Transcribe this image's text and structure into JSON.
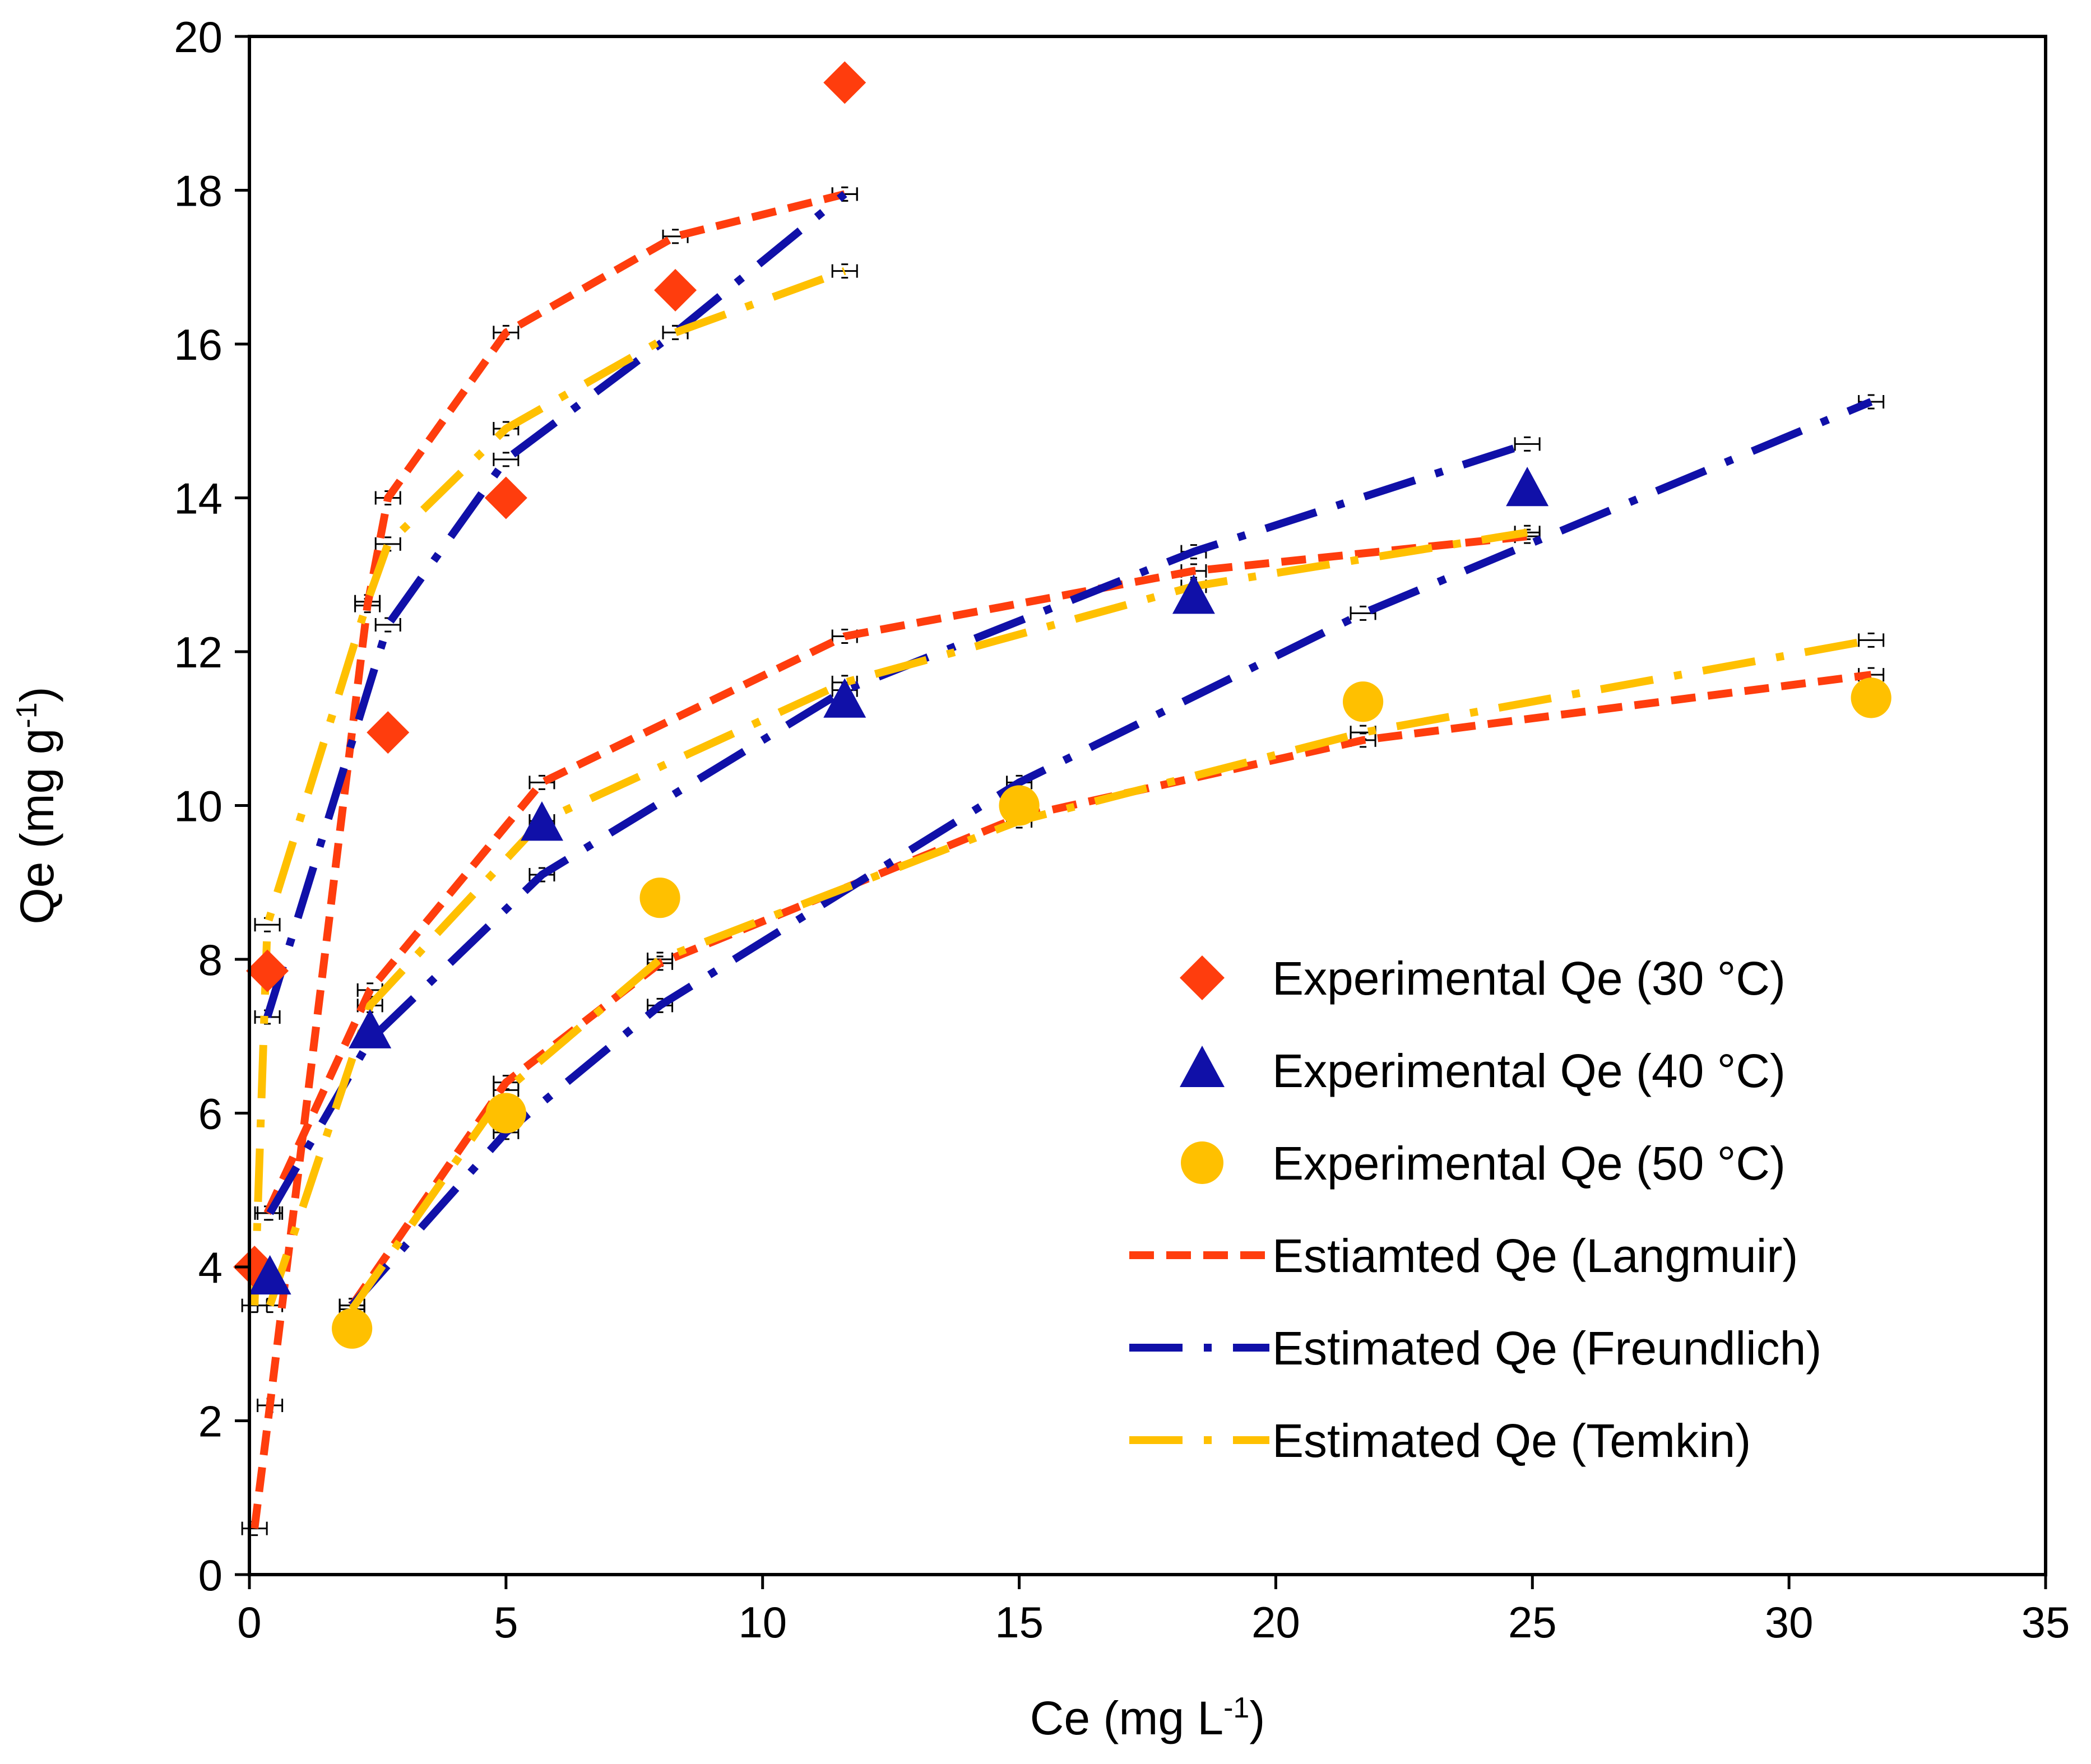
{
  "chart_data": {
    "type": "scatter",
    "xlabel": "Ce (mg L",
    "xlabel_sup": "-1",
    "xlabel_end": ")",
    "ylabel": "Qe (mg g",
    "ylabel_sup": "-1",
    "ylabel_end": ")",
    "xlim": [
      0,
      35
    ],
    "ylim": [
      0,
      20
    ],
    "xticks": [
      0,
      5,
      10,
      15,
      20,
      25,
      30,
      35
    ],
    "yticks": [
      0,
      2,
      4,
      6,
      8,
      10,
      12,
      14,
      16,
      18,
      20
    ],
    "grid": false,
    "legend_position": "bottom-right",
    "series": [
      {
        "name": "Experimental Qe (30 °C)",
        "marker": "diamond",
        "color": "#FF3D0D",
        "x": [
          0.1,
          0.35,
          2.7,
          5.0,
          8.3,
          11.6
        ],
        "y": [
          4.0,
          7.85,
          10.95,
          14.0,
          16.7,
          19.4
        ]
      },
      {
        "name": "Experimental Qe (40 °C)",
        "marker": "triangle",
        "color": "#1010A8",
        "x": [
          0.4,
          2.35,
          5.7,
          11.6,
          18.4,
          24.9
        ],
        "y": [
          3.85,
          7.05,
          9.75,
          11.35,
          12.7,
          14.1
        ]
      },
      {
        "name": "Experimental Qe (50 °C)",
        "marker": "circle",
        "color": "#FFC000",
        "x": [
          2.0,
          5.0,
          8.0,
          15.0,
          21.7,
          31.6
        ],
        "y": [
          3.2,
          6.0,
          8.8,
          10.0,
          11.35,
          11.4
        ]
      },
      {
        "name": "Estiamted Qe (Langmuir)",
        "line": "short-dash",
        "color": "#FF3D0D",
        "groups": [
          {
            "x": [
              0.1,
              0.4,
              2.3,
              2.7,
              5.0,
              8.3,
              11.6
            ],
            "y": [
              0.6,
              2.2,
              12.6,
              14.0,
              16.15,
              17.4,
              17.95
            ]
          },
          {
            "x": [
              0.35,
              2.35,
              5.7,
              11.6,
              18.4,
              24.9
            ],
            "y": [
              4.7,
              7.6,
              10.3,
              12.2,
              13.05,
              13.5
            ]
          },
          {
            "x": [
              2.0,
              5.0,
              8.0,
              15.0,
              21.7,
              31.6
            ],
            "y": [
              3.5,
              6.4,
              7.95,
              9.85,
              10.85,
              11.7
            ]
          }
        ]
      },
      {
        "name": "Estimated Qe (Freundlich)",
        "line": "long-dash-dot",
        "color": "#1010A8",
        "groups": [
          {
            "x": [
              0.35,
              2.7,
              5.0,
              8.3,
              11.6
            ],
            "y": [
              7.25,
              12.35,
              14.5,
              16.15,
              17.95
            ]
          },
          {
            "x": [
              0.4,
              2.35,
              5.7,
              11.6,
              18.4,
              24.9
            ],
            "y": [
              4.7,
              6.95,
              9.1,
              11.5,
              13.3,
              14.7
            ]
          },
          {
            "x": [
              2.0,
              5.0,
              8.0,
              15.0,
              21.7,
              31.6
            ],
            "y": [
              3.5,
              5.75,
              7.4,
              10.3,
              12.5,
              15.25
            ]
          }
        ]
      },
      {
        "name": "Estimated Qe (Temkin)",
        "line": "long-dash-dot",
        "color": "#FFC000",
        "groups": [
          {
            "x": [
              0.1,
              0.35,
              2.3,
              2.7,
              5.0,
              8.3,
              11.6
            ],
            "y": [
              3.5,
              8.45,
              12.65,
              13.4,
              14.9,
              16.15,
              16.95
            ]
          },
          {
            "x": [
              0.4,
              2.35,
              5.7,
              11.6,
              18.4,
              24.9
            ],
            "y": [
              3.5,
              7.4,
              9.8,
              11.6,
              12.85,
              13.55
            ]
          },
          {
            "x": [
              2.0,
              5.0,
              8.0,
              15.0,
              21.7,
              31.6
            ],
            "y": [
              3.45,
              6.3,
              8.0,
              9.8,
              10.95,
              12.15
            ]
          }
        ]
      }
    ]
  }
}
